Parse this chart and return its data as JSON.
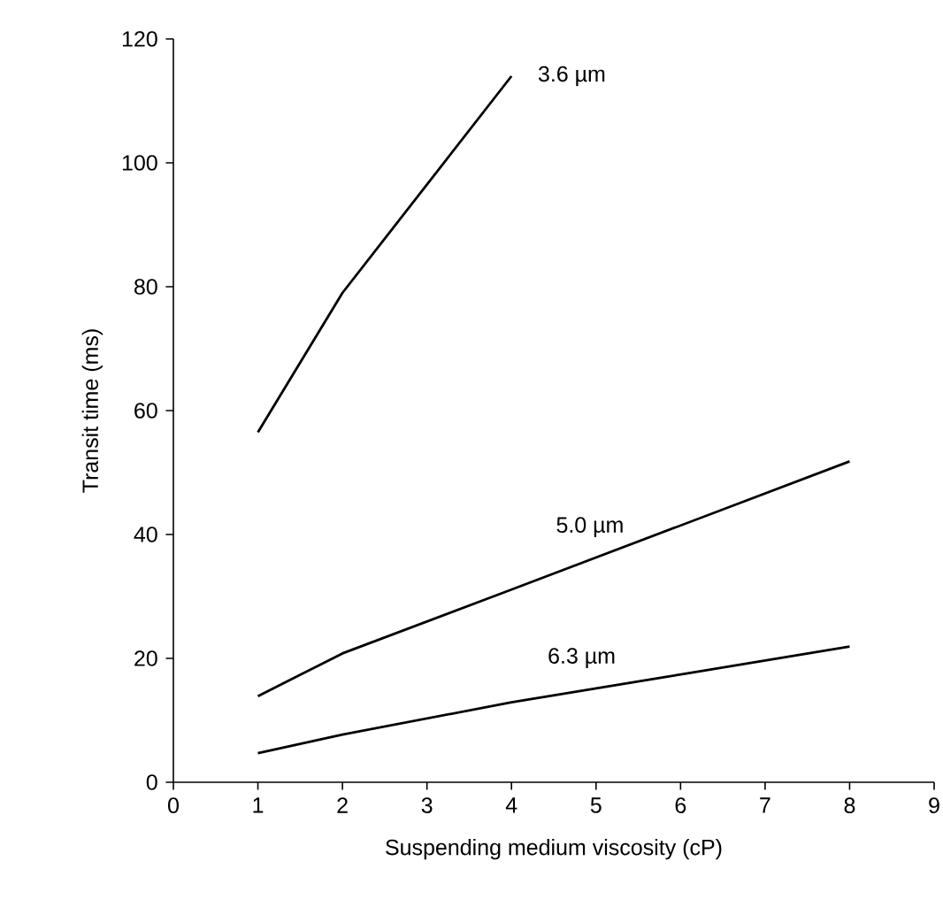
{
  "chart_data": {
    "type": "line",
    "xlabel": "Suspending medium viscosity (cP)",
    "ylabel": "Transit time (ms)",
    "xlim": [
      0,
      9
    ],
    "ylim": [
      0,
      120
    ],
    "xticks": [
      0,
      1,
      2,
      3,
      4,
      5,
      6,
      7,
      8,
      9
    ],
    "yticks": [
      0,
      20,
      40,
      60,
      80,
      100,
      120
    ],
    "grid": false,
    "marker": "none",
    "line_style": "solid",
    "series": [
      {
        "name": "3.6 µm",
        "color": "#000000",
        "x": [
          1,
          2,
          4
        ],
        "values": [
          56.5,
          79,
          114
        ]
      },
      {
        "name": "5.0 µm",
        "color": "#000000",
        "x": [
          1,
          2,
          4,
          8
        ],
        "values": [
          13.9,
          20.8,
          31.1,
          51.8
        ]
      },
      {
        "name": "6.3 µm",
        "color": "#000000",
        "x": [
          1,
          2,
          4,
          8
        ],
        "values": [
          4.7,
          7.7,
          12.9,
          21.9
        ]
      }
    ]
  }
}
